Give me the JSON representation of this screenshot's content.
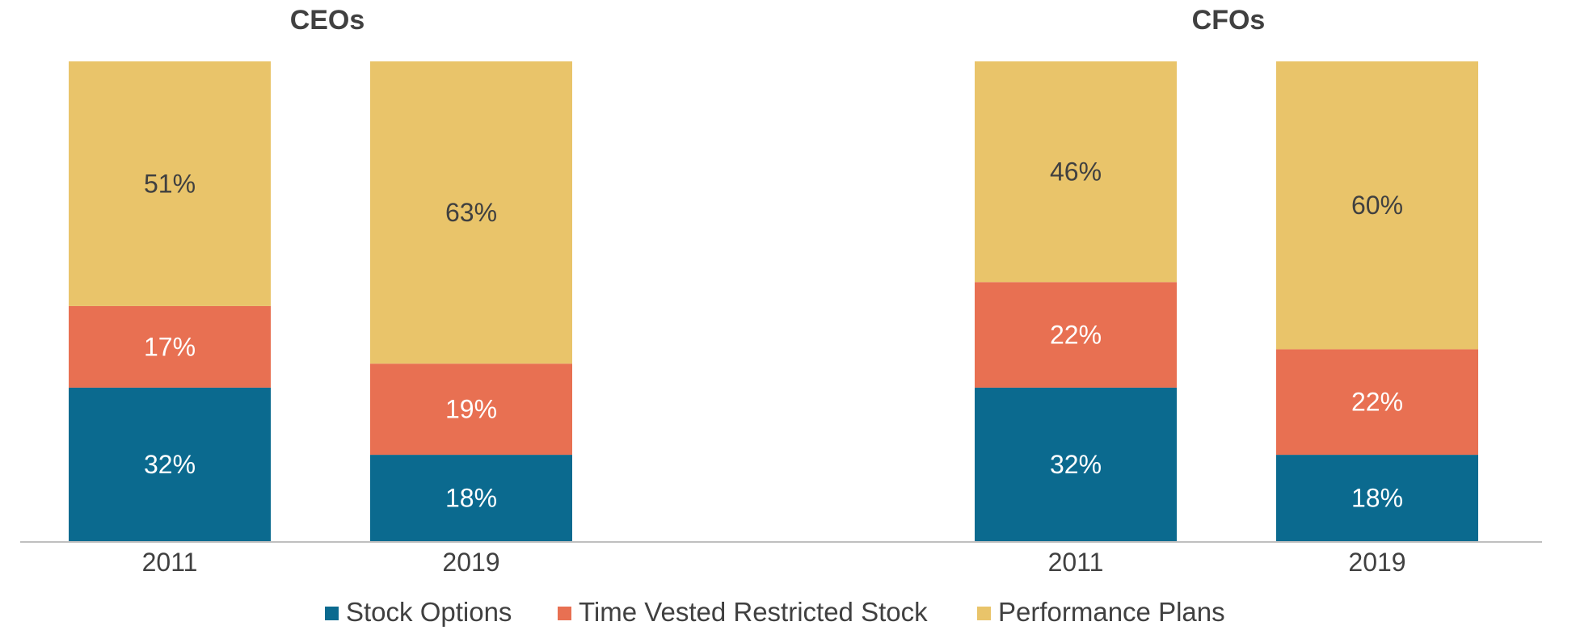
{
  "chart_data": {
    "type": "bar",
    "stacked": true,
    "groups": [
      {
        "title": "CEOs",
        "categories": [
          "2011",
          "2019"
        ]
      },
      {
        "title": "CFOs",
        "categories": [
          "2011",
          "2019"
        ]
      }
    ],
    "series": [
      {
        "name": "Stock Options",
        "color": "#0b6a8f",
        "label_color": "#ffffff",
        "values": [
          [
            32,
            18
          ],
          [
            32,
            18
          ]
        ],
        "labels": [
          [
            "32%",
            "18%"
          ],
          [
            "32%",
            "18%"
          ]
        ]
      },
      {
        "name": "Time Vested Restricted Stock",
        "color": "#e87052",
        "label_color": "#ffffff",
        "values": [
          [
            17,
            19
          ],
          [
            22,
            22
          ]
        ],
        "labels": [
          [
            "17%",
            "19%"
          ],
          [
            "22%",
            "22%"
          ]
        ]
      },
      {
        "name": "Performance Plans",
        "color": "#e9c46a",
        "label_color": "#404040",
        "values": [
          [
            51,
            63
          ],
          [
            46,
            60
          ]
        ],
        "labels": [
          [
            "51%",
            "63%"
          ],
          [
            "46%",
            "60%"
          ]
        ]
      }
    ],
    "ylim": [
      0,
      100
    ],
    "grid": false,
    "legend_position": "bottom-center",
    "axis_line_color": "#bfbfbf"
  }
}
